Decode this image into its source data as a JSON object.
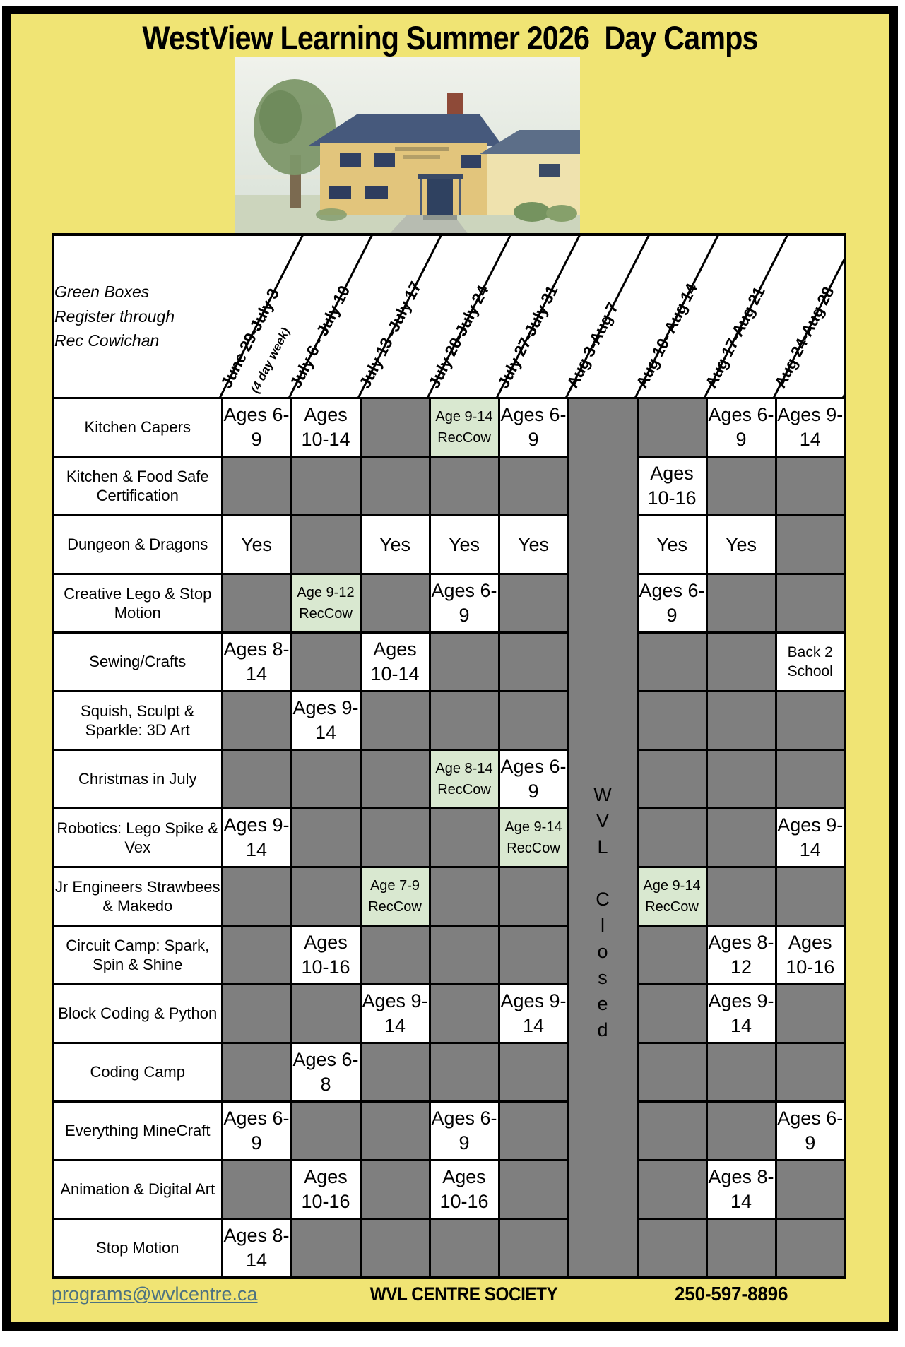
{
  "title": "WestView Learning Summer 2026  Day Camps",
  "legend_note": {
    "lines": [
      "Green Boxes",
      "Register through",
      "Rec Cowichan"
    ]
  },
  "weeks": [
    {
      "label": "June 29-July 3",
      "sublabel": "(4 day week)"
    },
    {
      "label": "July 6 - July 10"
    },
    {
      "label": "July 13 -July 17"
    },
    {
      "label": "July 20-July 24"
    },
    {
      "label": "July 27-July 31"
    },
    {
      "label": "Aug 3-Aug 7"
    },
    {
      "label": "Aug 10- Aug 14"
    },
    {
      "label": "Aug 17-Aug 21"
    },
    {
      "label": "Aug 24-Aug 28"
    }
  ],
  "closed_column": {
    "week": "Aug 3-Aug 7",
    "letters": [
      "W",
      "V",
      "L",
      "",
      "C",
      "l",
      "o",
      "s",
      "e",
      "d"
    ]
  },
  "camps": [
    {
      "name": "Kitchen Capers",
      "cells": [
        "Ages 6-9",
        "Ages 10-14",
        "",
        {
          "green": [
            "Age 9-14",
            "RecCow"
          ]
        },
        "Ages 6-9",
        "CLOSED",
        "",
        "Ages 6-9",
        "Ages 9-14"
      ]
    },
    {
      "name": "Kitchen & Food Safe Certification",
      "cells": [
        "",
        "",
        "",
        "",
        "",
        "CLOSED",
        "Ages 10-16",
        "",
        ""
      ]
    },
    {
      "name": "Dungeon & Dragons",
      "cells": [
        "Yes",
        "",
        "Yes",
        "Yes",
        "Yes",
        "CLOSED",
        "Yes",
        "Yes",
        ""
      ]
    },
    {
      "name": "Creative Lego & Stop Motion",
      "cells": [
        "",
        {
          "green": [
            "Age 9-12",
            "RecCow"
          ]
        },
        "",
        "Ages 6-9",
        "",
        "CLOSED",
        "Ages 6-9",
        "",
        ""
      ]
    },
    {
      "name": "Sewing/Crafts",
      "cells": [
        "Ages 8-14",
        "",
        "Ages 10-14",
        "",
        "",
        "CLOSED",
        "",
        "",
        "Back 2 School"
      ]
    },
    {
      "name": "Squish, Sculpt & Sparkle:  3D Art",
      "cells": [
        "",
        "Ages 9-14",
        "",
        "",
        "",
        "CLOSED",
        "",
        "",
        ""
      ]
    },
    {
      "name": "Christmas in July",
      "cells": [
        "",
        "",
        "",
        {
          "green": [
            "Age 8-14",
            "RecCow"
          ]
        },
        "Ages 6-9",
        "CLOSED",
        "",
        "",
        ""
      ]
    },
    {
      "name": "Robotics: Lego Spike & Vex",
      "cells": [
        "Ages 9-14",
        "",
        "",
        "",
        {
          "green": [
            "Age 9-14",
            "RecCow"
          ]
        },
        "CLOSED",
        "",
        "",
        "Ages 9-14"
      ]
    },
    {
      "name": "Jr Engineers Strawbees & Makedo",
      "cells": [
        "",
        "",
        {
          "green": [
            "Age 7-9",
            "RecCow"
          ]
        },
        "",
        "",
        "CLOSED",
        {
          "green": [
            "Age 9-14",
            "RecCow"
          ]
        },
        "",
        ""
      ]
    },
    {
      "name": "Circuit Camp: Spark, Spin & Shine",
      "cells": [
        "",
        "Ages 10-16",
        "",
        "",
        "",
        "CLOSED",
        "",
        "Ages 8-12",
        "Ages 10-16"
      ]
    },
    {
      "name": "Block  Coding & Python",
      "cells": [
        "",
        "",
        "Ages 9-14",
        "",
        "Ages 9-14",
        "CLOSED",
        "",
        "Ages 9-14",
        ""
      ]
    },
    {
      "name": "Coding Camp",
      "cells": [
        "",
        "Ages 6-8",
        "",
        "",
        "",
        "CLOSED",
        "",
        "",
        ""
      ]
    },
    {
      "name": "Everything MineCraft",
      "cells": [
        "Ages 6-9",
        "",
        "",
        "Ages 6-9",
        "",
        "CLOSED",
        "",
        "",
        "Ages 6-9"
      ]
    },
    {
      "name": "Animation & Digital Art",
      "cells": [
        "",
        "Ages 10-16",
        "",
        "Ages 10-16",
        "",
        "CLOSED",
        "",
        "Ages 8-14",
        ""
      ]
    },
    {
      "name": "Stop Motion",
      "cells": [
        "Ages 8-14",
        "",
        "",
        "",
        "",
        "CLOSED",
        "",
        "",
        ""
      ]
    }
  ],
  "footer": {
    "email": "programs@wvlcentre.ca",
    "org": "WVL CENTRE SOCIETY",
    "phone": "250-597-8896"
  },
  "colors": {
    "poster_yellow": "#f0e474",
    "unavailable_gray": "#7f7f7f",
    "reccow_green": "#d9e8d0",
    "email_link": "#4d7280"
  }
}
